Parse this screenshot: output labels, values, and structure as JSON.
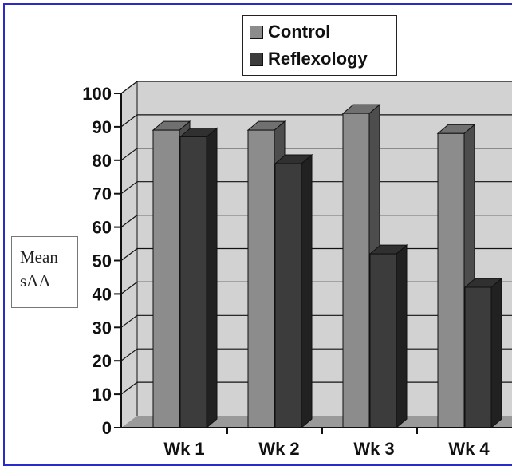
{
  "chart_data": {
    "type": "bar",
    "categories": [
      "Wk 1",
      "Wk 2",
      "Wk 3",
      "Wk 4"
    ],
    "series": [
      {
        "name": "Control",
        "values": [
          89,
          89,
          94,
          88
        ],
        "color": "#8c8c8c"
      },
      {
        "name": "Reflexology",
        "values": [
          87,
          79,
          52,
          42
        ],
        "color": "#3c3c3c"
      }
    ],
    "title": "",
    "xlabel": "",
    "ylabel": [
      "Mean",
      "sAA"
    ],
    "ylim": [
      0,
      100
    ],
    "yticks": [
      "0",
      "10",
      "20",
      "30",
      "40",
      "50",
      "60",
      "70",
      "80",
      "90",
      "100"
    ],
    "grid": true,
    "legend_position": "top",
    "three_d": true
  }
}
